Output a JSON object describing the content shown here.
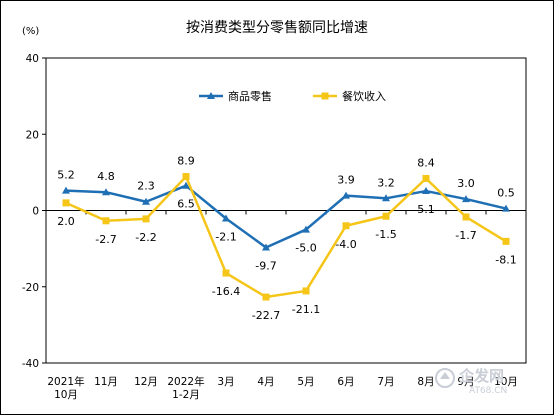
{
  "chart_data": {
    "type": "line",
    "title": "按消费类型分零售额同比增速",
    "ylabel": "(%)",
    "ylim": [
      -40,
      40
    ],
    "yticks": [
      40,
      20,
      0,
      -20,
      -40
    ],
    "categories": [
      [
        "2021年",
        "10月"
      ],
      [
        "11月"
      ],
      [
        "12月"
      ],
      [
        "2022年",
        "1-2月"
      ],
      [
        "3月"
      ],
      [
        "4月"
      ],
      [
        "5月"
      ],
      [
        "6月"
      ],
      [
        "7月"
      ],
      [
        "8月"
      ],
      [
        "9月"
      ],
      [
        "10月"
      ]
    ],
    "series": [
      {
        "name": "商品零售",
        "color": "#1f6fb4",
        "marker": "triangle",
        "values": [
          5.2,
          4.8,
          2.3,
          6.5,
          -2.1,
          -9.7,
          -5.0,
          3.9,
          3.2,
          5.1,
          3.0,
          0.5
        ],
        "labels": [
          "5.2",
          "4.8",
          "2.3",
          "6.5",
          "-2.1",
          "-9.7",
          "-5.0",
          "3.9",
          "3.2",
          "5.1",
          "3.0",
          "0.5"
        ]
      },
      {
        "name": "餐饮收入",
        "color": "#f5c518",
        "marker": "square",
        "values": [
          2.0,
          -2.7,
          -2.2,
          8.9,
          -16.4,
          -22.7,
          -21.1,
          -4.0,
          -1.5,
          8.4,
          -1.7,
          -8.1
        ],
        "labels": [
          "2.0",
          "-2.7",
          "-2.2",
          "8.9",
          "-16.4",
          "-22.7",
          "-21.1",
          "-4.0",
          "-1.5",
          "8.4",
          "-1.7",
          "-8.1"
        ]
      }
    ],
    "grid": false,
    "legend": "top-center"
  },
  "watermark": {
    "text": "企发网",
    "sub": "AT68.CN"
  }
}
